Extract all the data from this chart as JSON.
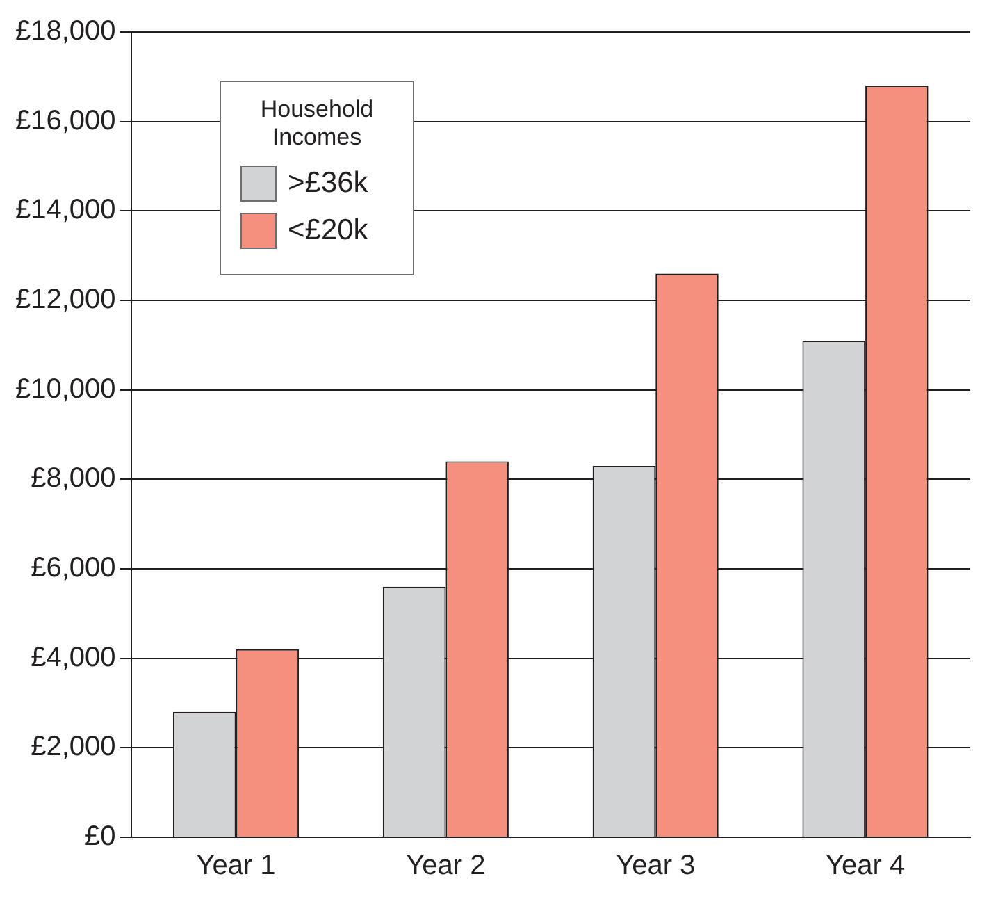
{
  "chart_data": {
    "type": "bar",
    "categories": [
      "Year 1",
      "Year 2",
      "Year 3",
      "Year 4"
    ],
    "series": [
      {
        "name": ">£36k",
        "color": "#d1d3d4",
        "values": [
          2800,
          5600,
          8300,
          11100
        ]
      },
      {
        "name": "<£20k",
        "color": "#f4907d",
        "values": [
          4200,
          8400,
          12600,
          16800
        ]
      }
    ],
    "legend_title": "Household Incomes",
    "legend": "top left",
    "grid": "y",
    "ylim": [
      0,
      18000
    ],
    "yticks": [
      {
        "value": 0,
        "label": "£0"
      },
      {
        "value": 2000,
        "label": "£2,000"
      },
      {
        "value": 4000,
        "label": "£4,000"
      },
      {
        "value": 6000,
        "label": "£6,000"
      },
      {
        "value": 8000,
        "label": "£8,000"
      },
      {
        "value": 10000,
        "label": "£10,000"
      },
      {
        "value": 12000,
        "label": "£12,000"
      },
      {
        "value": 14000,
        "label": "£14,000"
      },
      {
        "value": 16000,
        "label": "£16,000"
      },
      {
        "value": 18000,
        "label": "£18,000"
      }
    ]
  }
}
